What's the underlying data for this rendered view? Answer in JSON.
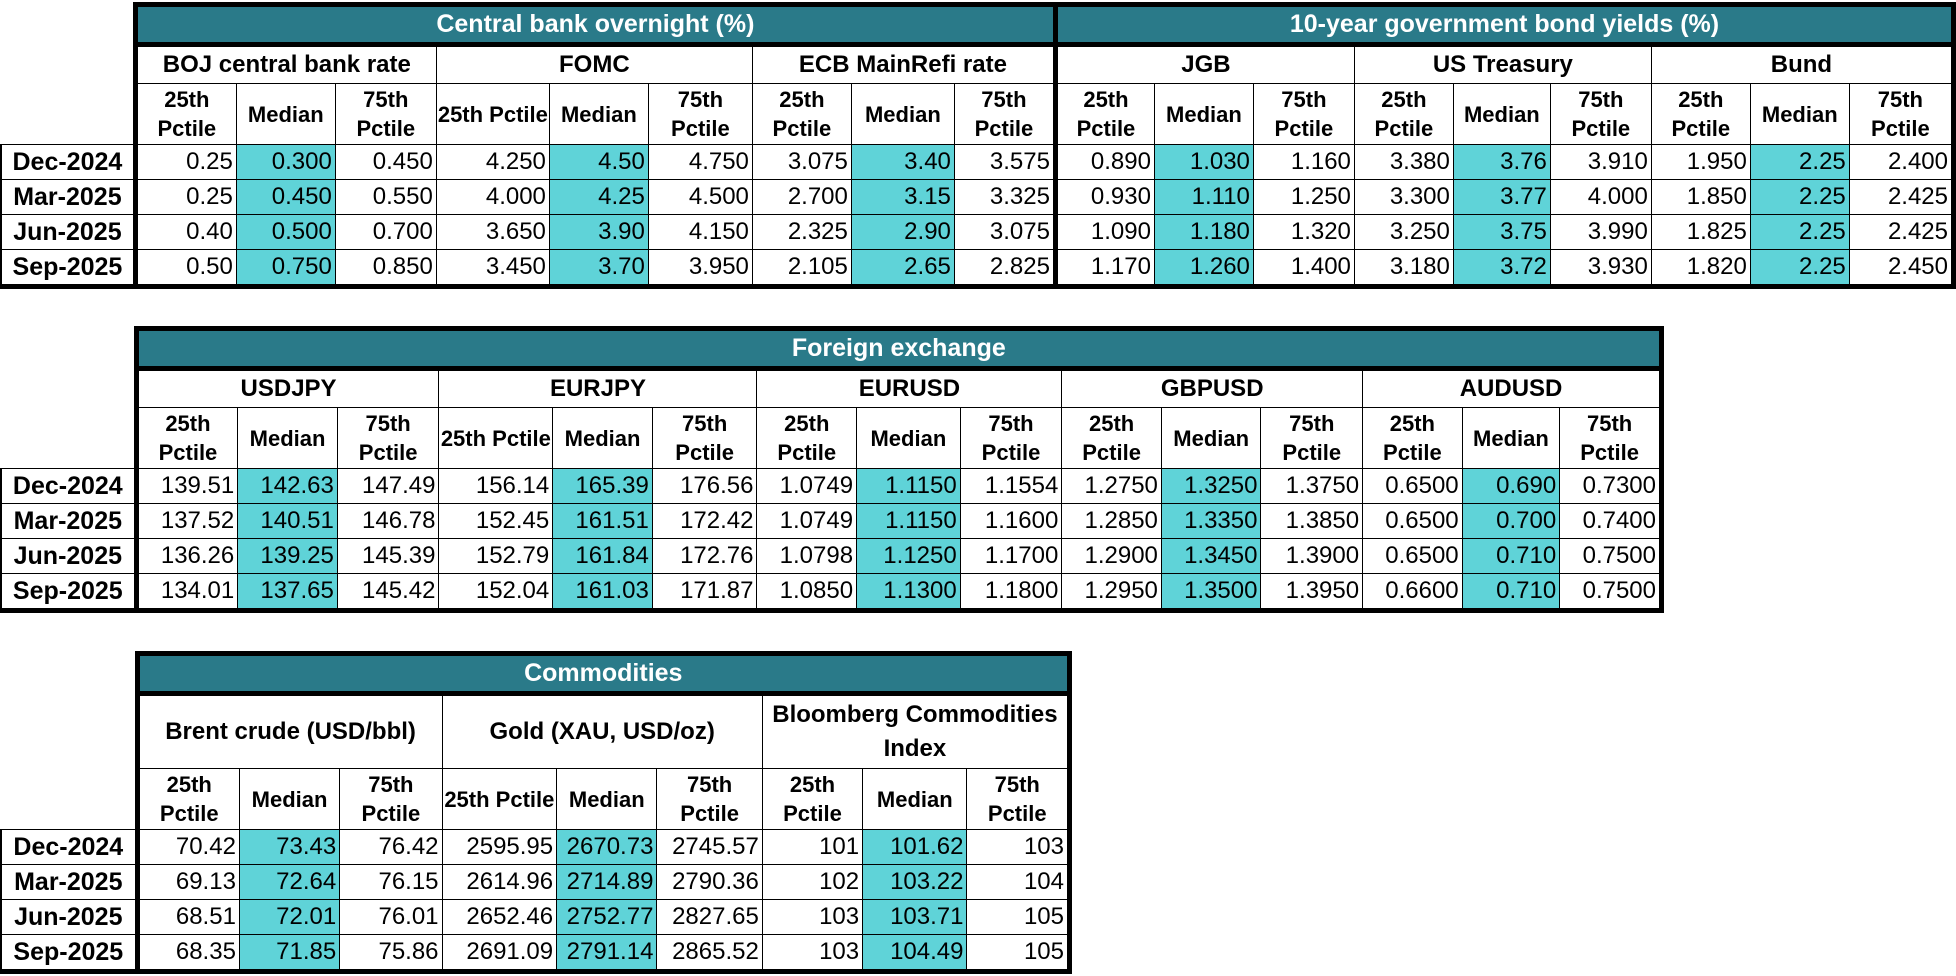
{
  "subcols": [
    "25th Pctile",
    "Median",
    "75th Pctile"
  ],
  "rows": [
    "Dec-2024",
    "Mar-2025",
    "Jun-2025",
    "Sep-2025"
  ],
  "table1": {
    "section_titles": [
      "Central bank overnight (%)",
      "10-year government bond yields (%)"
    ],
    "groups": [
      "BOJ central bank rate",
      "FOMC",
      "ECB MainRefi rate",
      "JGB",
      "US Treasury",
      "Bund"
    ],
    "values": [
      [
        "0.25",
        "0.300",
        "0.450",
        "4.250",
        "4.50",
        "4.750",
        "3.075",
        "3.40",
        "3.575",
        "0.890",
        "1.030",
        "1.160",
        "3.380",
        "3.76",
        "3.910",
        "1.950",
        "2.25",
        "2.400"
      ],
      [
        "0.25",
        "0.450",
        "0.550",
        "4.000",
        "4.25",
        "4.500",
        "2.700",
        "3.15",
        "3.325",
        "0.930",
        "1.110",
        "1.250",
        "3.300",
        "3.77",
        "4.000",
        "1.850",
        "2.25",
        "2.425"
      ],
      [
        "0.40",
        "0.500",
        "0.700",
        "3.650",
        "3.90",
        "4.150",
        "2.325",
        "2.90",
        "3.075",
        "1.090",
        "1.180",
        "1.320",
        "3.250",
        "3.75",
        "3.990",
        "1.825",
        "2.25",
        "2.425"
      ],
      [
        "0.50",
        "0.750",
        "0.850",
        "3.450",
        "3.70",
        "3.950",
        "2.105",
        "2.65",
        "2.825",
        "1.170",
        "1.260",
        "1.400",
        "3.180",
        "3.72",
        "3.930",
        "1.820",
        "2.25",
        "2.450"
      ]
    ]
  },
  "table2": {
    "section_title": "Foreign exchange",
    "groups": [
      "USDJPY",
      "EURJPY",
      "EURUSD",
      "GBPUSD",
      "AUDUSD"
    ],
    "values": [
      [
        "139.51",
        "142.63",
        "147.49",
        "156.14",
        "165.39",
        "176.56",
        "1.0749",
        "1.1150",
        "1.1554",
        "1.2750",
        "1.3250",
        "1.3750",
        "0.6500",
        "0.690",
        "0.7300"
      ],
      [
        "137.52",
        "140.51",
        "146.78",
        "152.45",
        "161.51",
        "172.42",
        "1.0749",
        "1.1150",
        "1.1600",
        "1.2850",
        "1.3350",
        "1.3850",
        "0.6500",
        "0.700",
        "0.7400"
      ],
      [
        "136.26",
        "139.25",
        "145.39",
        "152.79",
        "161.84",
        "172.76",
        "1.0798",
        "1.1250",
        "1.1700",
        "1.2900",
        "1.3450",
        "1.3900",
        "0.6500",
        "0.710",
        "0.7500"
      ],
      [
        "134.01",
        "137.65",
        "145.42",
        "152.04",
        "161.03",
        "171.87",
        "1.0850",
        "1.1300",
        "1.1800",
        "1.2950",
        "1.3500",
        "1.3950",
        "0.6600",
        "0.710",
        "0.7500"
      ]
    ]
  },
  "table3": {
    "section_title": "Commodities",
    "groups": [
      "Brent crude (USD/bbl)",
      "Gold (XAU, USD/oz)",
      "Bloomberg Commodities Index"
    ],
    "values": [
      [
        "70.42",
        "73.43",
        "76.42",
        "2595.95",
        "2670.73",
        "2745.57",
        "101",
        "101.62",
        "103"
      ],
      [
        "69.13",
        "72.64",
        "76.15",
        "2614.96",
        "2714.89",
        "2790.36",
        "102",
        "103.22",
        "104"
      ],
      [
        "68.51",
        "72.01",
        "76.01",
        "2652.46",
        "2752.77",
        "2827.65",
        "103",
        "103.71",
        "105"
      ],
      [
        "68.35",
        "71.85",
        "75.86",
        "2691.09",
        "2791.14",
        "2865.52",
        "103",
        "104.49",
        "105"
      ]
    ]
  },
  "colors": {
    "header": "#2a7a89",
    "median_fill": "#5fd3d8"
  }
}
